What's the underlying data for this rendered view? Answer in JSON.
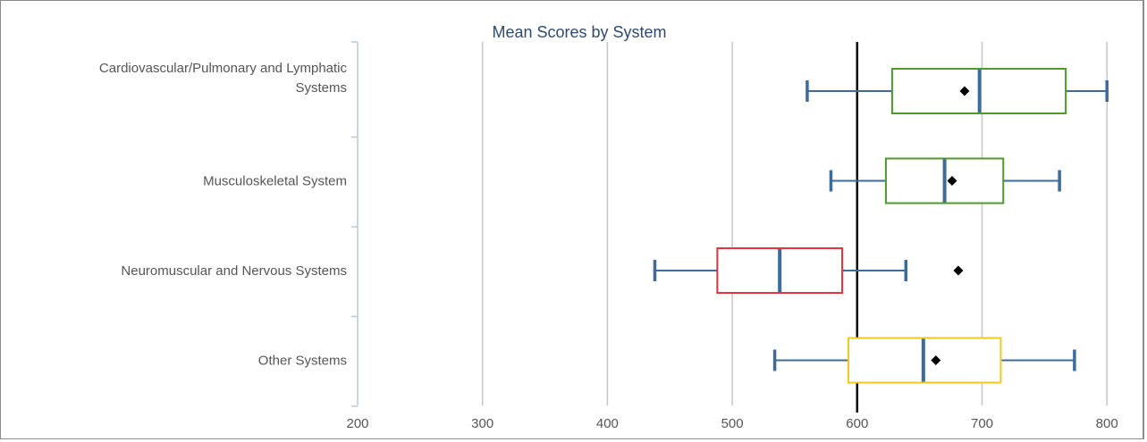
{
  "chart_data": {
    "type": "boxplot",
    "orientation": "horizontal",
    "title": "Mean Scores by System",
    "xlabel": "",
    "ylabel": "",
    "xlim": [
      200,
      810
    ],
    "x_ticks": [
      200,
      300,
      400,
      500,
      600,
      700,
      800
    ],
    "grid": "vertical",
    "reference_line": 600,
    "categories": [
      {
        "label_lines": [
          "Cardiovascular/Pulmonary and Lymphatic",
          "Systems"
        ],
        "whisker_low": 560,
        "q1": 628,
        "median": 698,
        "q3": 767,
        "whisker_high": 800,
        "mean": 686,
        "color": "#4e9a2a"
      },
      {
        "label_lines": [
          "Musculoskeletal System"
        ],
        "whisker_low": 579,
        "q1": 623,
        "median": 670,
        "q3": 717,
        "whisker_high": 762,
        "mean": 676,
        "color": "#4e9a2a"
      },
      {
        "label_lines": [
          "Neuromuscular and Nervous Systems"
        ],
        "whisker_low": 438,
        "q1": 488,
        "median": 538,
        "q3": 588,
        "whisker_high": 639,
        "mean": 681,
        "color": "#e8323c"
      },
      {
        "label_lines": [
          "Other Systems"
        ],
        "whisker_low": 534,
        "q1": 593,
        "median": 653,
        "q3": 715,
        "whisker_high": 774,
        "mean": 663,
        "color": "#f2c81e"
      }
    ],
    "colors": {
      "whisker": "#3d6b9c",
      "median": "#3d6b9c",
      "mean_marker": "#000000",
      "grid": "#c6c6c6",
      "axis": "#b9c9da",
      "reference_line": "#000000",
      "title": "#2e4a73"
    }
  }
}
